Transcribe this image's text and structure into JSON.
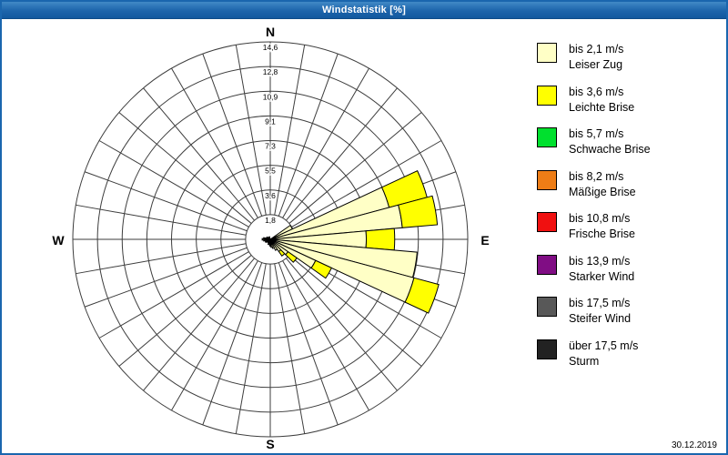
{
  "window": {
    "title": "Windstatistik [%]",
    "date": "30.12.2019"
  },
  "compass": {
    "north": "N",
    "east": "E",
    "south": "S",
    "west": "W"
  },
  "legend": [
    {
      "color": "#ffffc6",
      "speed": "bis 2,1 m/s",
      "name": "Leiser Zug"
    },
    {
      "color": "#ffff00",
      "speed": "bis 3,6 m/s",
      "name": "Leichte Brise"
    },
    {
      "color": "#00e02e",
      "speed": "bis 5,7 m/s",
      "name": "Schwache Brise"
    },
    {
      "color": "#ee7d16",
      "speed": "bis 8,2 m/s",
      "name": "Mäßige Brise"
    },
    {
      "color": "#f01010",
      "speed": "bis 10,8 m/s",
      "name": "Frische Brise"
    },
    {
      "color": "#800d84",
      "speed": "bis 13,9 m/s",
      "name": "Starker Wind"
    },
    {
      "color": "#585858",
      "speed": "bis 17,5 m/s",
      "name": "Steifer Wind"
    },
    {
      "color": "#222222",
      "speed": "über 17,5 m/s",
      "name": "Sturm"
    }
  ],
  "chart_data": {
    "type": "wind-rose",
    "title": "Windstatistik [%]",
    "unit": "%",
    "axis_max": 14.6,
    "ring_values": [
      1.8,
      3.6,
      5.5,
      7.3,
      9.1,
      10.9,
      12.8,
      14.6
    ],
    "ring_labels": [
      "1,8",
      "3,6",
      "5,5",
      "7,3",
      "9,1",
      "10,9",
      "12,8",
      "14,6"
    ],
    "sector_width_deg": 10,
    "direction_labels": [
      "N",
      "E",
      "S",
      "W"
    ],
    "series": [
      {
        "name": "bis 2,1 m/s",
        "color": "#ffffc6"
      },
      {
        "name": "bis 3,6 m/s",
        "color": "#ffff00"
      }
    ],
    "sectors": [
      {
        "dir": 60,
        "values": [
          1.8,
          0
        ]
      },
      {
        "dir": 70,
        "values": [
          9.1,
          2.9
        ]
      },
      {
        "dir": 80,
        "values": [
          9.8,
          2.6
        ]
      },
      {
        "dir": 90,
        "values": [
          7.1,
          2.1
        ]
      },
      {
        "dir": 100,
        "values": [
          10.9,
          0
        ]
      },
      {
        "dir": 110,
        "values": [
          11.0,
          1.9
        ]
      },
      {
        "dir": 120,
        "values": [
          3.7,
          1.3
        ]
      },
      {
        "dir": 130,
        "values": [
          1.6,
          0.8
        ]
      },
      {
        "dir": 140,
        "values": [
          1.1,
          0.4
        ]
      },
      {
        "dir": 150,
        "values": [
          0.9,
          0
        ]
      },
      {
        "dir": 160,
        "values": [
          0.7,
          0
        ]
      },
      {
        "dir": 170,
        "values": [
          0.6,
          0
        ]
      },
      {
        "dir": 180,
        "values": [
          0.5,
          0
        ]
      },
      {
        "dir": 200,
        "values": [
          0.4,
          0
        ]
      },
      {
        "dir": 220,
        "values": [
          0.3,
          0
        ]
      },
      {
        "dir": 240,
        "values": [
          0.4,
          0
        ]
      },
      {
        "dir": 260,
        "values": [
          0.5,
          0
        ]
      },
      {
        "dir": 270,
        "values": [
          0.6,
          0
        ]
      },
      {
        "dir": 280,
        "values": [
          0.5,
          0
        ]
      },
      {
        "dir": 300,
        "values": [
          0.3,
          0
        ]
      },
      {
        "dir": 320,
        "values": [
          0.2,
          0
        ]
      },
      {
        "dir": 340,
        "values": [
          0.2,
          0
        ]
      }
    ]
  }
}
